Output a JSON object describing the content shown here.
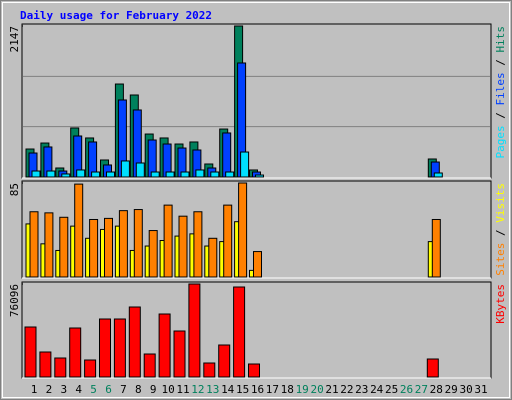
{
  "chart_data": [
    {
      "type": "bar",
      "title": "Daily usage for February 2022",
      "categories": [
        "1",
        "2",
        "3",
        "4",
        "5",
        "6",
        "7",
        "8",
        "9",
        "10",
        "11",
        "12",
        "13",
        "14",
        "15",
        "16",
        "17",
        "18",
        "19",
        "20",
        "21",
        "22",
        "23",
        "24",
        "25",
        "26",
        "27",
        "28",
        "29",
        "30",
        "31"
      ],
      "tick_label_colors": [
        "#000000",
        "#000000",
        "#000000",
        "#000000",
        "#00805c",
        "#00805c",
        "#000000",
        "#000000",
        "#000000",
        "#000000",
        "#000000",
        "#00805c",
        "#00805c",
        "#000000",
        "#000000",
        "#000000",
        "#000000",
        "#000000",
        "#00805c",
        "#00805c",
        "#000000",
        "#000000",
        "#000000",
        "#000000",
        "#000000",
        "#00805c",
        "#00805c",
        "#000000",
        "#000000",
        "#000000",
        "#000000"
      ],
      "ylim": [
        0,
        2147
      ],
      "yticks": [
        2147
      ],
      "legend_separator": " / ",
      "series": [
        {
          "name": "Pages",
          "color": "#00e0ff",
          "values": [
            85,
            85,
            43,
            100,
            71,
            71,
            228,
            199,
            71,
            71,
            71,
            100,
            71,
            71,
            355,
            28,
            null,
            null,
            null,
            null,
            null,
            null,
            null,
            null,
            null,
            null,
            null,
            57,
            null,
            null,
            null
          ]
        },
        {
          "name": "Files",
          "color": "#0040ff",
          "values": [
            341,
            427,
            85,
            583,
            498,
            171,
            1095,
            953,
            526,
            469,
            412,
            384,
            128,
            626,
            1621,
            71,
            null,
            null,
            null,
            null,
            null,
            null,
            null,
            null,
            null,
            null,
            null,
            213,
            null,
            null,
            null
          ]
        },
        {
          "name": "Hits",
          "color": "#00805c",
          "values": [
            398,
            483,
            128,
            697,
            555,
            242,
            1322,
            1166,
            611,
            555,
            469,
            498,
            185,
            682,
            2147,
            100,
            null,
            null,
            null,
            null,
            null,
            null,
            null,
            null,
            null,
            null,
            null,
            256,
            null,
            null,
            null
          ]
        }
      ]
    },
    {
      "type": "bar",
      "ylim": [
        0,
        85
      ],
      "yticks": [
        85
      ],
      "legend_separator": " / ",
      "series": [
        {
          "name": "Sites",
          "color": "#ff8000",
          "values": [
            59,
            58,
            54,
            84,
            52,
            53,
            60,
            61,
            42,
            65,
            55,
            59,
            35,
            65,
            85,
            23,
            null,
            null,
            null,
            null,
            null,
            null,
            null,
            null,
            null,
            null,
            null,
            52,
            null,
            null,
            null
          ]
        },
        {
          "name": "Visits",
          "color": "#ffff00",
          "values": [
            48,
            30,
            24,
            46,
            35,
            43,
            46,
            24,
            28,
            33,
            37,
            39,
            28,
            32,
            50,
            6,
            null,
            null,
            null,
            null,
            null,
            null,
            null,
            null,
            null,
            null,
            null,
            32,
            null,
            null,
            null
          ]
        }
      ]
    },
    {
      "type": "bar",
      "ylim": [
        0,
        76096
      ],
      "yticks": [
        76096
      ],
      "series": [
        {
          "name": "KBytes",
          "color": "#ff0000",
          "values": [
            40912,
            20456,
            15547,
            40093,
            13911,
            47458,
            47458,
            57276,
            18820,
            51549,
            37638,
            76096,
            11455,
            26184,
            73641,
            10637,
            null,
            null,
            null,
            null,
            null,
            null,
            null,
            null,
            null,
            null,
            null,
            14729,
            null,
            null,
            null
          ]
        }
      ]
    }
  ]
}
